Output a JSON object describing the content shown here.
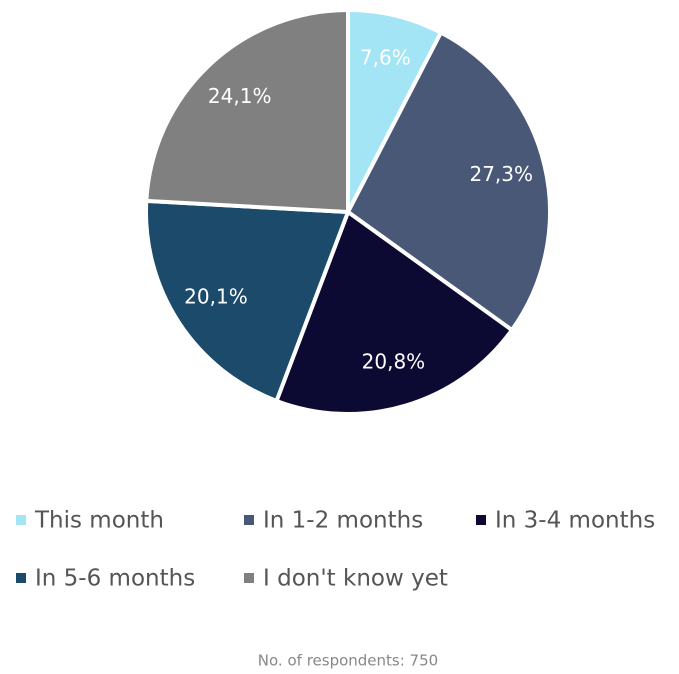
{
  "chart_data": {
    "type": "pie",
    "categories": [
      "This month",
      "In 1-2 months",
      "In 3-4 months",
      "In 5-6 months",
      "I don't know yet"
    ],
    "values": [
      7.6,
      27.3,
      20.8,
      20.1,
      24.1
    ],
    "value_labels": [
      "7,6%",
      "27,3%",
      "20,8%",
      "20,1%",
      "24,1%"
    ],
    "colors": [
      "#a3e5f5",
      "#4a5877",
      "#0c0a33",
      "#1c4a6b",
      "#808080"
    ],
    "note": "No. of respondents: 750"
  }
}
